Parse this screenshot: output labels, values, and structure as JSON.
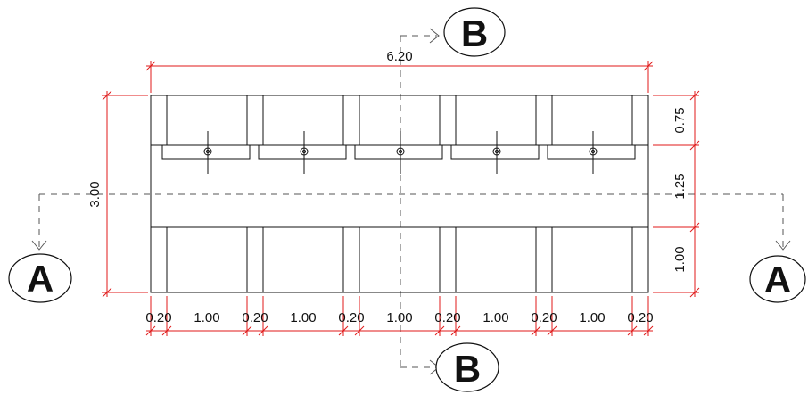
{
  "drawing": {
    "overall_width_label": "6.20",
    "overall_height_label": "3.00",
    "right_dims": [
      "0.75",
      "1.25",
      "1.00"
    ],
    "bottom_dims": [
      "0.20",
      "1.00",
      "0.20",
      "1.00",
      "0.20",
      "1.00",
      "0.20",
      "1.00",
      "0.20",
      "1.00",
      "0.20"
    ],
    "section_markers": {
      "left": "A",
      "right": "A",
      "top": "B",
      "bottom": "B"
    },
    "colors": {
      "linework": "#111111",
      "dimension": "#e01a1a",
      "section_line": "#555555"
    }
  }
}
